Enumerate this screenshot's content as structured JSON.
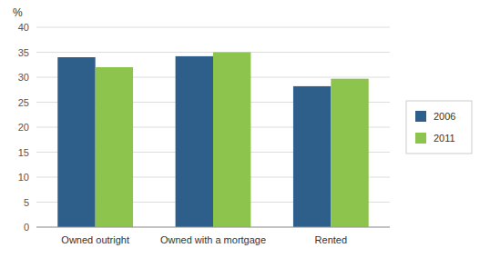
{
  "chart_data": {
    "type": "bar",
    "ylabel": "%",
    "categories": [
      "Owned outright",
      "Owned with a mortgage",
      "Rented"
    ],
    "series": [
      {
        "name": "2006",
        "color": "#2E5F8A",
        "values": [
          34,
          34.2,
          28.2
        ]
      },
      {
        "name": "2011",
        "color": "#8DC44E",
        "values": [
          32,
          35,
          29.7
        ]
      }
    ],
    "ylim": [
      0,
      40
    ],
    "yticks": [
      0,
      5,
      10,
      15,
      20,
      25,
      30,
      35,
      40
    ],
    "grid": true,
    "legend": "right"
  }
}
